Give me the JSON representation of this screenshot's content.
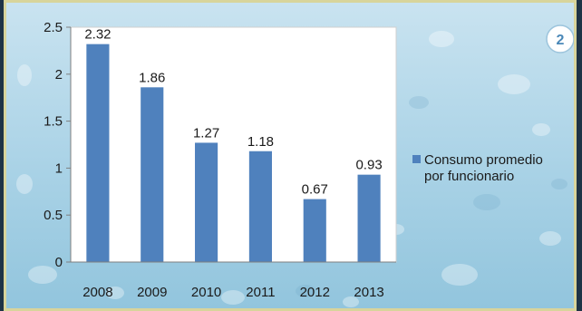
{
  "page_badge": "2",
  "colors": {
    "bar": "#4f81bd",
    "plot_background": "#ffffff",
    "frame": "#d8d49b",
    "badge_text": "#4a88b8"
  },
  "chart_data": {
    "type": "bar",
    "categories": [
      "2008",
      "2009",
      "2010",
      "2011",
      "2012",
      "2013"
    ],
    "values": [
      2.32,
      1.86,
      1.27,
      1.18,
      0.67,
      0.93
    ],
    "data_labels": [
      "2.32",
      "1.86",
      "1.27",
      "1.18",
      "0.67",
      "0.93"
    ],
    "ylim": [
      0,
      2.5
    ],
    "y_ticks": [
      "0",
      "0.5",
      "1",
      "1.5",
      "2",
      "2.5"
    ],
    "grid": false,
    "legend_position": "right",
    "series": [
      {
        "name": "Consumo promedio por funcionario",
        "legend_lines": [
          "Consumo promedio",
          "por funcionario"
        ]
      }
    ]
  }
}
